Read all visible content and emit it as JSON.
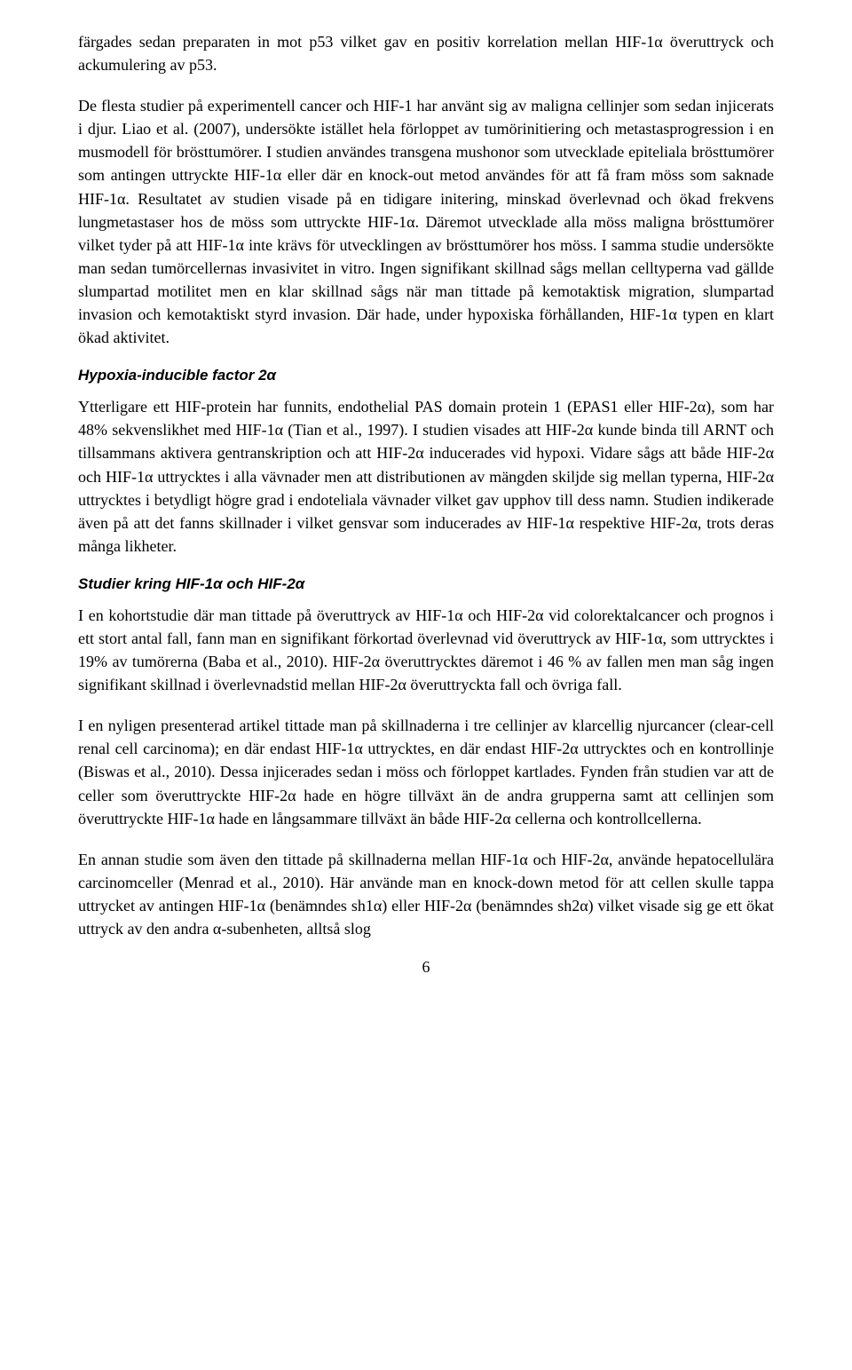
{
  "paragraphs": {
    "p1": "färgades sedan preparaten in mot p53 vilket gav en positiv korrelation mellan HIF-1α överuttryck och ackumulering av p53.",
    "p2": "De flesta studier på experimentell cancer och HIF-1 har använt sig av maligna cellinjer som sedan injicerats i djur. Liao et al. (2007), undersökte istället hela förloppet av tumörinitiering och metastasprogression i en musmodell för brösttumörer. I studien användes transgena mushonor som utvecklade epiteliala brösttumörer som antingen uttryckte HIF-1α eller där en knock-out metod användes för att få fram möss som saknade HIF-1α. Resultatet av studien visade på en tidigare initering, minskad överlevnad och ökad frekvens lungmetastaser hos de möss som uttryckte HIF-1α. Däremot utvecklade alla möss maligna brösttumörer vilket tyder på att HIF-1α inte krävs för utvecklingen av brösttumörer hos möss. I samma studie undersökte man sedan tumörcellernas invasivitet in vitro. Ingen signifikant skillnad sågs mellan celltyperna vad gällde slumpartad motilitet men en klar skillnad sågs när man tittade på kemotaktisk migration, slumpartad invasion och kemotaktiskt styrd invasion. Där hade, under hypoxiska förhållanden, HIF-1α typen en klart ökad aktivitet.",
    "p3": "Ytterligare ett HIF-protein har funnits, endothelial PAS domain protein 1 (EPAS1 eller HIF-2α), som har 48% sekvenslikhet med HIF-1α (Tian et al., 1997). I studien visades att HIF-2α kunde binda till ARNT och tillsammans aktivera gentranskription och att HIF-2α inducerades vid hypoxi. Vidare sågs att både HIF-2α och HIF-1α uttrycktes i alla vävnader men att distributionen av mängden skiljde sig mellan typerna, HIF-2α uttrycktes i betydligt högre grad i endoteliala vävnader vilket gav upphov till dess namn. Studien indikerade även på att det fanns skillnader i vilket gensvar som inducerades av HIF-1α respektive HIF-2α, trots deras många likheter.",
    "p4": "I en kohortstudie där man tittade på överuttryck av HIF-1α och HIF-2α vid colorektalcancer och prognos i ett stort antal fall, fann man en signifikant förkortad överlevnad vid överuttryck av HIF-1α, som uttrycktes i 19% av tumörerna (Baba et al., 2010). HIF-2α överuttrycktes däremot i 46 % av fallen men man såg ingen signifikant skillnad i överlevnadstid mellan HIF-2α överuttryckta fall och övriga fall.",
    "p5": "I en nyligen presenterad artikel tittade man på skillnaderna i tre cellinjer av klarcellig njurcancer (clear-cell renal cell carcinoma); en där endast HIF-1α uttrycktes, en där endast HIF-2α uttrycktes och en kontrollinje (Biswas et al., 2010). Dessa injicerades sedan i möss och förloppet kartlades. Fynden från studien var att de celler som överuttryckte HIF-2α hade en högre tillväxt än de andra grupperna samt att cellinjen som överuttryckte HIF-1α hade en långsammare tillväxt än både HIF-2α cellerna och kontrollcellerna.",
    "p6": "En annan studie som även den tittade på skillnaderna mellan HIF-1α och HIF-2α, använde hepatocellulära carcinomceller (Menrad et al., 2010). Här använde man en knock-down metod för att cellen skulle tappa uttrycket av antingen HIF-1α (benämndes sh1α) eller HIF-2α (benämndes sh2α) vilket visade sig ge ett ökat uttryck av den andra α-subenheten, alltså slog"
  },
  "headings": {
    "h1": "Hypoxia-inducible factor 2α",
    "h2": "Studier kring HIF-1α och HIF-2α"
  },
  "page_number": "6"
}
